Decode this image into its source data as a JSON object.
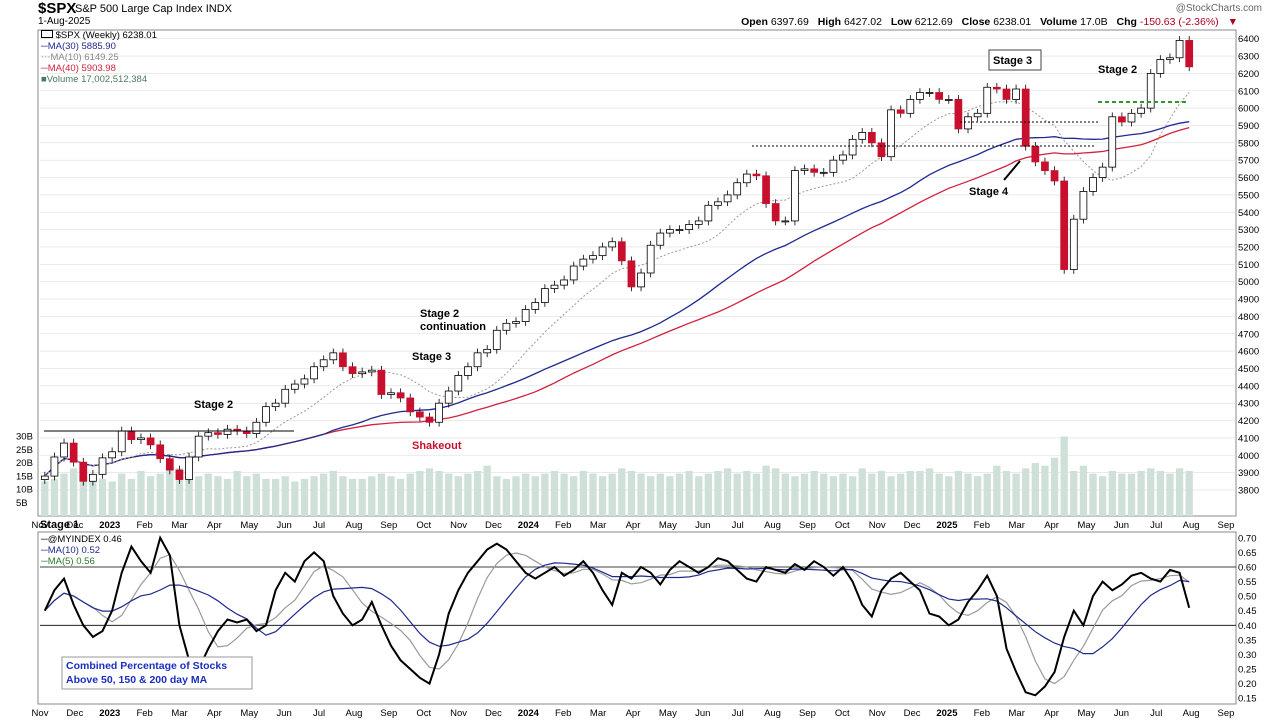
{
  "header": {
    "symbol": "$SPX",
    "name": "S&P 500 Large Cap Index",
    "exchange": "INDX",
    "date": "1-Aug-2025",
    "open_label": "Open",
    "open": "6397.69",
    "high_label": "High",
    "high": "6427.02",
    "low_label": "Low",
    "low": "6212.69",
    "close_label": "Close",
    "close": "6238.01",
    "volume_label": "Volume",
    "volume": "17.0B",
    "chg_label": "Chg",
    "chg": "-150.63 (-2.36%)",
    "chg_icon": "down-triangle-icon",
    "copyright": "@StockCharts.com"
  },
  "legend": {
    "price": "$SPX (Weekly) 6238.01",
    "ma30": "MA(30) 5885.90",
    "ma10": "MA(10) 6149.25",
    "ma40": "MA(40) 5903.98",
    "volume": "Volume 17,002,512,384",
    "ind": "@MYINDEX 0.46",
    "ind_ma10": "MA(10) 0.52",
    "ind_ma5": "MA(5) 0.56"
  },
  "annotations": {
    "stage1": "Stage 1",
    "stage2_early": "Stage 2",
    "stage2_cont_1": "Stage 2",
    "stage2_cont_2": "continuation",
    "stage3_2023": "Stage 3",
    "shakeout": "Shakeout",
    "stage3_2025": "Stage 3",
    "stage4": "Stage 4",
    "stage2_2025": "Stage 2",
    "indicator_note_1": "Combined Percentage of Stocks",
    "indicator_note_2": "Above 50, 150 & 200 day MA"
  },
  "colors": {
    "up": "#ffffff",
    "down": "#c8102e",
    "candle_outline": "#000000",
    "ma30": "#1f2a8f",
    "ma40": "#d0213f",
    "ma10": "#9a9a9a",
    "volume": "#cfe0d8",
    "grid": "#dddddd",
    "indicator": "#000000"
  },
  "chart_data": [
    {
      "type": "candlestick",
      "title": "$SPX (Weekly)",
      "ylim": [
        3650,
        6450
      ],
      "y_ticks": [
        3800,
        3900,
        4000,
        4100,
        4200,
        4300,
        4400,
        4500,
        4600,
        4700,
        4800,
        4900,
        5000,
        5100,
        5200,
        5300,
        5400,
        5500,
        5600,
        5700,
        5800,
        5900,
        6000,
        6100,
        6200,
        6300,
        6400
      ],
      "x_labels": [
        "Nov",
        "Dec",
        "2023",
        "Feb",
        "Mar",
        "Apr",
        "May",
        "Jun",
        "Jul",
        "Aug",
        "Sep",
        "Oct",
        "Nov",
        "Dec",
        "2024",
        "Feb",
        "Mar",
        "Apr",
        "May",
        "Jun",
        "Jul",
        "Aug",
        "Sep",
        "Oct",
        "Nov",
        "Dec",
        "2025",
        "Feb",
        "Mar",
        "Apr",
        "May",
        "Jun",
        "Jul",
        "Aug",
        "Sep"
      ],
      "series": [
        {
          "name": "Close",
          "values": [
            3880,
            3990,
            4070,
            3960,
            3850,
            3890,
            3985,
            4020,
            4140,
            4090,
            4100,
            4060,
            3980,
            3915,
            3860,
            3990,
            4110,
            4130,
            4120,
            4150,
            4140,
            4125,
            4190,
            4280,
            4300,
            4380,
            4410,
            4440,
            4510,
            4550,
            4590,
            4510,
            4470,
            4480,
            4490,
            4350,
            4360,
            4330,
            4250,
            4220,
            4190,
            4300,
            4370,
            4460,
            4510,
            4590,
            4610,
            4720,
            4760,
            4770,
            4840,
            4880,
            4960,
            4980,
            5010,
            5090,
            5130,
            5150,
            5200,
            5230,
            5120,
            4970,
            5050,
            5210,
            5280,
            5300,
            5300,
            5330,
            5350,
            5440,
            5460,
            5500,
            5570,
            5620,
            5610,
            5450,
            5350,
            5350,
            5640,
            5650,
            5630,
            5630,
            5700,
            5730,
            5820,
            5860,
            5800,
            5720,
            5990,
            5970,
            6050,
            6090,
            6090,
            6050,
            6050,
            5880,
            5950,
            5970,
            6120,
            6110,
            6050,
            6110,
            5780,
            5690,
            5640,
            5580,
            5070,
            5360,
            5520,
            5600,
            5660,
            5950,
            5920,
            5970,
            6000,
            6200,
            6280,
            6290,
            6390,
            6238
          ]
        },
        {
          "name": "MA(30)",
          "values": []
        },
        {
          "name": "MA(40)",
          "values": []
        },
        {
          "name": "MA(10)",
          "values": []
        }
      ]
    },
    {
      "type": "bar",
      "title": "Volume",
      "y_ticks_labels": [
        "5B",
        "10B",
        "15B",
        "20B",
        "25B",
        "30B"
      ],
      "values_billions": [
        13,
        14,
        16,
        18,
        19,
        15,
        14,
        13,
        16,
        14,
        17,
        15,
        16,
        19,
        18,
        17,
        15,
        16,
        15,
        14,
        17,
        15,
        16,
        14,
        14,
        15,
        13,
        14,
        15,
        16,
        17,
        15,
        14,
        14,
        15,
        16,
        15,
        14,
        16,
        17,
        18,
        17,
        16,
        15,
        16,
        17,
        19,
        15,
        14,
        15,
        16,
        15,
        16,
        17,
        16,
        15,
        17,
        16,
        15,
        16,
        18,
        17,
        16,
        15,
        16,
        15,
        16,
        17,
        15,
        16,
        17,
        18,
        16,
        17,
        16,
        19,
        18,
        16,
        15,
        16,
        17,
        16,
        15,
        16,
        15,
        18,
        16,
        17,
        15,
        16,
        17,
        17,
        18,
        16,
        15,
        17,
        16,
        15,
        16,
        19,
        17,
        16,
        18,
        20,
        19,
        22,
        30,
        17,
        19,
        16,
        15,
        17,
        16,
        16,
        17,
        18,
        17,
        16,
        18,
        17
      ]
    },
    {
      "type": "line",
      "title": "@MYINDEX",
      "ylim": [
        0.13,
        0.72
      ],
      "y_ticks": [
        0.15,
        0.2,
        0.25,
        0.3,
        0.35,
        0.4,
        0.45,
        0.5,
        0.55,
        0.6,
        0.65,
        0.7
      ],
      "reference_lines": [
        0.4,
        0.6
      ],
      "series": [
        {
          "name": "@MYINDEX",
          "values": [
            0.45,
            0.52,
            0.56,
            0.47,
            0.4,
            0.36,
            0.38,
            0.45,
            0.58,
            0.67,
            0.62,
            0.58,
            0.7,
            0.64,
            0.4,
            0.28,
            0.25,
            0.32,
            0.38,
            0.42,
            0.41,
            0.42,
            0.38,
            0.4,
            0.52,
            0.58,
            0.55,
            0.62,
            0.65,
            0.62,
            0.5,
            0.44,
            0.4,
            0.42,
            0.48,
            0.4,
            0.33,
            0.28,
            0.25,
            0.22,
            0.2,
            0.3,
            0.44,
            0.52,
            0.58,
            0.62,
            0.66,
            0.68,
            0.66,
            0.62,
            0.58,
            0.56,
            0.58,
            0.6,
            0.57,
            0.59,
            0.62,
            0.58,
            0.52,
            0.47,
            0.58,
            0.56,
            0.6,
            0.58,
            0.54,
            0.59,
            0.62,
            0.6,
            0.58,
            0.6,
            0.63,
            0.62,
            0.59,
            0.56,
            0.55,
            0.6,
            0.59,
            0.58,
            0.61,
            0.59,
            0.62,
            0.6,
            0.57,
            0.6,
            0.55,
            0.47,
            0.43,
            0.52,
            0.56,
            0.58,
            0.55,
            0.52,
            0.44,
            0.43,
            0.4,
            0.42,
            0.48,
            0.52,
            0.57,
            0.5,
            0.32,
            0.24,
            0.17,
            0.16,
            0.19,
            0.24,
            0.36,
            0.45,
            0.4,
            0.5,
            0.55,
            0.52,
            0.54,
            0.57,
            0.58,
            0.56,
            0.55,
            0.59,
            0.58,
            0.46
          ]
        },
        {
          "name": "MA(10)",
          "values": []
        },
        {
          "name": "MA(5)",
          "values": []
        }
      ]
    }
  ]
}
